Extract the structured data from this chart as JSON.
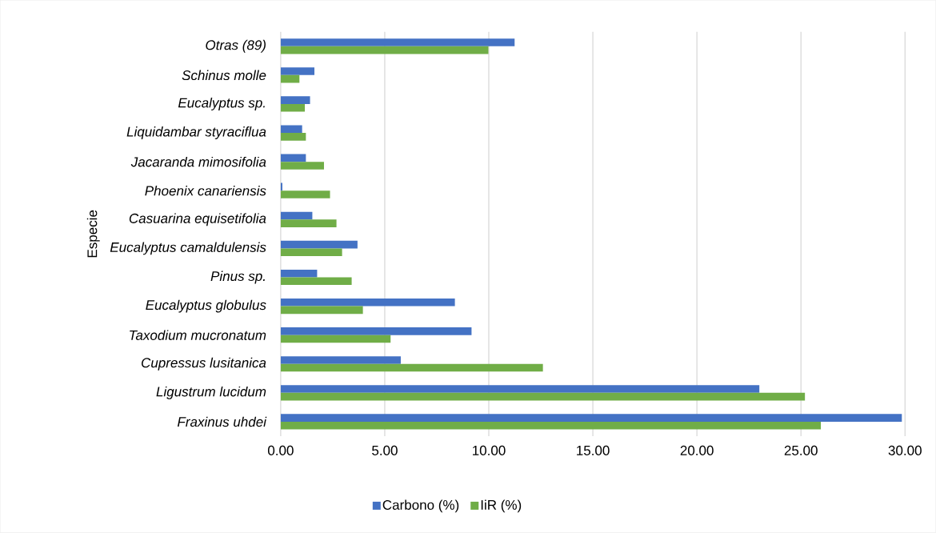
{
  "chart_data": {
    "type": "bar",
    "orientation": "horizontal",
    "ylabel": "Especie",
    "categories": [
      "Otras (89)",
      "Schinus molle",
      "Eucalyptus sp.",
      "Liquidambar styraciflua",
      "Jacaranda mimosifolia",
      "Phoenix canariensis",
      "Casuarina equisetifolia",
      "Eucalyptus camaldulensis",
      "Pinus sp.",
      "Eucalyptus globulus",
      "Taxodium mucronatum",
      "Cupressus lusitanica",
      "Ligustrum lucidum",
      "Fraxinus uhdei"
    ],
    "series": [
      {
        "name": "Carbono (%)",
        "color": "#4472c4",
        "values": [
          11.24,
          1.62,
          1.41,
          1.03,
          1.21,
          0.08,
          1.52,
          3.69,
          1.75,
          8.37,
          9.17,
          5.77,
          23.0,
          29.85
        ]
      },
      {
        "name": "IiR (%)",
        "color": "#70ad47",
        "values": [
          9.98,
          0.9,
          1.16,
          1.21,
          2.08,
          2.37,
          2.68,
          2.95,
          3.41,
          3.95,
          5.28,
          12.6,
          25.19,
          25.96
        ]
      }
    ],
    "xlim": [
      0,
      30
    ],
    "xticks": [
      {
        "value": 0,
        "label": "0.00"
      },
      {
        "value": 5,
        "label": "5.00"
      },
      {
        "value": 10,
        "label": "10.00"
      },
      {
        "value": 15,
        "label": "15.00"
      },
      {
        "value": 20,
        "label": "20.00"
      },
      {
        "value": 25,
        "label": "25.00"
      },
      {
        "value": 30,
        "label": "30.00"
      }
    ],
    "grid": "x",
    "legend": "bottom"
  }
}
